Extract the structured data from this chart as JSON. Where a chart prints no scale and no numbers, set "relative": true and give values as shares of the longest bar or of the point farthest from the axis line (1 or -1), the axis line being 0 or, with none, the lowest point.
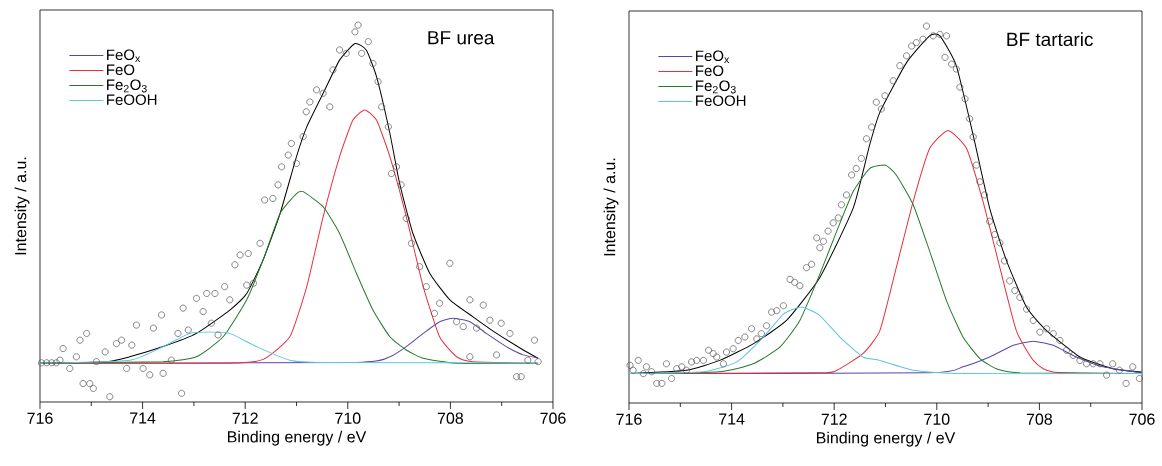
{
  "chart_data": [
    {
      "type": "line",
      "title": "BF urea",
      "xlabel": "Binding energy / eV",
      "ylabel": "Intensity / a.u.",
      "xlim": [
        716,
        706
      ],
      "xticks": [
        716,
        714,
        712,
        710,
        708,
        706
      ],
      "relative": true,
      "legend": "top left",
      "series": [
        {
          "type": "scatter",
          "marker": "circle",
          "color": "#555555",
          "x": [
            715.97,
            715.87,
            715.77,
            715.68,
            715.61,
            715.55,
            715.42,
            715.29,
            715.22,
            715.16,
            715.09,
            715.03,
            714.96,
            714.9,
            714.73,
            714.64,
            714.51,
            714.41,
            714.31,
            714.21,
            714.12,
            713.99,
            713.86,
            713.79,
            713.63,
            713.6,
            713.44,
            713.31,
            713.24,
            713.21,
            713.11,
            712.95,
            712.82,
            712.75,
            712.66,
            712.59,
            712.53,
            712.4,
            712.3,
            712.2,
            712.1,
            711.97,
            711.94,
            711.84,
            711.71,
            711.62,
            711.46,
            711.36,
            711.29,
            711.16,
            711.1,
            711.0,
            710.87,
            710.81,
            710.74,
            710.61,
            710.48,
            710.35,
            710.29,
            710.16,
            710.03,
            709.86,
            709.8,
            709.73,
            709.6,
            709.51,
            709.41,
            709.34,
            709.21,
            709.15,
            709.05,
            708.96,
            708.86,
            708.76,
            708.6,
            708.47,
            708.31,
            708.21,
            708.01,
            707.88,
            707.75,
            707.62,
            707.62,
            707.49,
            707.36,
            707.23,
            707.1,
            707.01,
            706.84,
            706.71,
            706.62,
            706.49,
            706.36,
            706.29
          ],
          "values": [
            0.104,
            0.104,
            0.104,
            0.104,
            0.111,
            0.142,
            0.089,
            0.12,
            0.164,
            0.049,
            0.182,
            0.049,
            0.036,
            0.107,
            0.133,
            0.014,
            0.155,
            0.164,
            0.089,
            0.151,
            0.204,
            0.089,
            0.072,
            0.196,
            0.231,
            0.076,
            0.111,
            0.182,
            0.023,
            0.249,
            0.191,
            0.275,
            0.24,
            0.288,
            0.209,
            0.288,
            0.178,
            0.306,
            0.271,
            0.364,
            0.39,
            0.31,
            0.394,
            0.315,
            0.421,
            0.536,
            0.54,
            0.576,
            0.624,
            0.655,
            0.686,
            0.633,
            0.704,
            0.77,
            0.796,
            0.828,
            0.819,
            0.783,
            0.881,
            0.934,
            0.925,
            0.982,
            1.0,
            0.925,
            0.956,
            0.898,
            0.85,
            0.783,
            0.73,
            0.606,
            0.624,
            0.576,
            0.487,
            0.421,
            0.359,
            0.306,
            0.235,
            0.262,
            0.368,
            0.213,
            0.2,
            0.271,
            0.12,
            0.196,
            0.257,
            0.217,
            0.125,
            0.209,
            0.182,
            0.067,
            0.067,
            0.111,
            0.164,
            0.107
          ]
        },
        {
          "color": "#000000",
          "x": [
            716,
            714.7,
            714.25,
            713.6,
            712.95,
            712.3,
            711.97,
            711.65,
            711.32,
            711.0,
            710.8,
            710.48,
            710.16,
            709.86,
            709.64,
            709.44,
            709.18,
            708.99,
            708.73,
            708.4,
            708.01,
            707.56,
            707.1,
            706.58,
            706.29
          ],
          "values": [
            0.103,
            0.107,
            0.12,
            0.147,
            0.182,
            0.244,
            0.288,
            0.377,
            0.5,
            0.651,
            0.73,
            0.819,
            0.907,
            0.951,
            0.934,
            0.863,
            0.713,
            0.58,
            0.447,
            0.341,
            0.271,
            0.226,
            0.182,
            0.138,
            0.116
          ]
        },
        {
          "name": "FeO$_{x}$",
          "color": "#5b45a8",
          "x": [
            716,
            709.83,
            709.18,
            708.86,
            708.53,
            708.21,
            707.95,
            707.62,
            707.3,
            706.91,
            706.58,
            706.29
          ],
          "values": [
            0.103,
            0.105,
            0.12,
            0.147,
            0.182,
            0.213,
            0.222,
            0.213,
            0.182,
            0.147,
            0.125,
            0.117
          ]
        },
        {
          "name": "FeO",
          "color": "#e8303a",
          "x": [
            716,
            712.3,
            711.65,
            711.13,
            710.8,
            710.48,
            710.16,
            709.9,
            709.67,
            709.44,
            709.18,
            708.86,
            708.53,
            708.21,
            707.88,
            707.56,
            706.29
          ],
          "values": [
            0.103,
            0.103,
            0.113,
            0.173,
            0.306,
            0.492,
            0.651,
            0.748,
            0.775,
            0.748,
            0.651,
            0.492,
            0.306,
            0.173,
            0.12,
            0.107,
            0.103
          ]
        },
        {
          "name": "Fe$_{2}$O$_{3}$",
          "color": "#237a2a",
          "x": [
            716,
            713.6,
            712.95,
            712.43,
            711.97,
            711.65,
            711.32,
            711.0,
            710.87,
            710.48,
            710.16,
            709.83,
            709.51,
            709.18,
            708.86,
            708.53,
            707.88,
            706.29
          ],
          "values": [
            0.103,
            0.107,
            0.12,
            0.173,
            0.271,
            0.377,
            0.5,
            0.553,
            0.558,
            0.518,
            0.447,
            0.341,
            0.244,
            0.173,
            0.138,
            0.116,
            0.103,
            0.103
          ]
        },
        {
          "name": "FeOOH",
          "color": "#5cc6dc",
          "x": [
            716,
            714.25,
            713.6,
            713.08,
            712.69,
            712.3,
            711.78,
            711.13,
            710.48,
            706.29
          ],
          "values": [
            0.103,
            0.111,
            0.147,
            0.182,
            0.186,
            0.182,
            0.147,
            0.111,
            0.105,
            0.103
          ]
        }
      ]
    },
    {
      "type": "line",
      "title": "BF tartaric",
      "xlabel": "Binding energy / eV",
      "ylabel": "Intensity / a.u.",
      "xlim": [
        716,
        706
      ],
      "xticks": [
        716,
        714,
        712,
        710,
        708,
        706
      ],
      "relative": true,
      "legend": "top left",
      "series": [
        {
          "type": "scatter",
          "marker": "circle",
          "color": "#555555",
          "x": [
            715.98,
            715.92,
            715.82,
            715.72,
            715.66,
            715.56,
            715.46,
            715.36,
            715.27,
            715.17,
            715.07,
            714.97,
            714.88,
            714.78,
            714.68,
            714.55,
            714.45,
            714.36,
            714.29,
            714.16,
            714.1,
            713.97,
            713.87,
            713.74,
            713.61,
            713.51,
            713.42,
            713.32,
            713.22,
            713.12,
            712.99,
            712.86,
            712.77,
            712.67,
            712.54,
            712.44,
            712.34,
            712.28,
            712.21,
            712.12,
            712.02,
            711.92,
            711.86,
            711.76,
            711.66,
            711.57,
            711.47,
            711.37,
            711.27,
            711.18,
            711.08,
            711.01,
            710.85,
            710.72,
            710.59,
            710.49,
            710.4,
            710.27,
            710.2,
            710.07,
            709.94,
            709.81,
            709.84,
            709.71,
            709.62,
            709.55,
            709.45,
            709.36,
            709.29,
            709.23,
            709.16,
            709.07,
            708.97,
            708.87,
            708.77,
            708.68,
            708.58,
            708.48,
            708.38,
            708.25,
            708.12,
            707.99,
            707.86,
            707.73,
            707.6,
            707.47,
            707.34,
            707.21,
            707.08,
            706.95,
            706.82,
            706.69,
            706.57,
            706.44,
            706.31,
            706.18,
            706.05
          ],
          "values": [
            0.1,
            0.087,
            0.113,
            0.078,
            0.096,
            0.083,
            0.052,
            0.052,
            0.104,
            0.065,
            0.091,
            0.096,
            0.087,
            0.109,
            0.113,
            0.113,
            0.14,
            0.131,
            0.122,
            0.104,
            0.135,
            0.144,
            0.166,
            0.175,
            0.197,
            0.17,
            0.184,
            0.205,
            0.241,
            0.245,
            0.258,
            0.328,
            0.32,
            0.311,
            0.359,
            0.368,
            0.438,
            0.412,
            0.429,
            0.456,
            0.478,
            0.491,
            0.526,
            0.552,
            0.605,
            0.622,
            0.649,
            0.701,
            0.732,
            0.798,
            0.78,
            0.815,
            0.855,
            0.895,
            0.921,
            0.947,
            0.956,
            0.965,
            1.0,
            0.974,
            0.978,
            0.974,
            0.917,
            0.899,
            0.886,
            0.838,
            0.807,
            0.754,
            0.706,
            0.631,
            0.587,
            0.552,
            0.482,
            0.447,
            0.425,
            0.377,
            0.324,
            0.298,
            0.28,
            0.249,
            0.219,
            0.188,
            0.197,
            0.184,
            0.166,
            0.14,
            0.126,
            0.113,
            0.104,
            0.104,
            0.104,
            0.074,
            0.104,
            0.087,
            0.052,
            0.096,
            0.065
          ]
        },
        {
          "color": "#000000",
          "x": [
            716,
            714.88,
            714.23,
            713.58,
            712.93,
            712.28,
            711.63,
            711.31,
            711.11,
            710.59,
            710.14,
            709.94,
            709.62,
            709.29,
            708.97,
            708.64,
            708.25,
            707.86,
            707.21,
            706.57,
            706.01
          ],
          "values": [
            0.078,
            0.087,
            0.113,
            0.157,
            0.219,
            0.333,
            0.517,
            0.684,
            0.771,
            0.903,
            0.974,
            0.974,
            0.895,
            0.71,
            0.517,
            0.377,
            0.254,
            0.192,
            0.122,
            0.091,
            0.082
          ]
        },
        {
          "name": "FeO$_{x}$",
          "color": "#5b45a8",
          "x": [
            716,
            710.14,
            709.49,
            708.97,
            708.51,
            708.12,
            707.73,
            707.28,
            706.76,
            706
          ],
          "values": [
            0.078,
            0.08,
            0.096,
            0.122,
            0.153,
            0.164,
            0.153,
            0.122,
            0.096,
            0.08
          ]
        },
        {
          "name": "FeO",
          "color": "#e8303a",
          "x": [
            716,
            712.28,
            711.95,
            711.44,
            711.11,
            710.79,
            710.46,
            710.14,
            709.78,
            709.42,
            709.1,
            708.77,
            708.45,
            708.12,
            707.73,
            706
          ],
          "values": [
            0.078,
            0.08,
            0.087,
            0.131,
            0.192,
            0.359,
            0.535,
            0.675,
            0.723,
            0.675,
            0.535,
            0.359,
            0.192,
            0.113,
            0.082,
            0.078
          ]
        },
        {
          "name": "Fe$_{2}$O$_{3}$",
          "color": "#237a2a",
          "x": [
            716,
            714.23,
            713.58,
            713.06,
            712.67,
            712.28,
            711.95,
            711.63,
            711.31,
            711.0,
            710.79,
            710.46,
            710.14,
            709.81,
            709.49,
            709.16,
            708.84,
            708.38,
            706
          ],
          "values": [
            0.078,
            0.083,
            0.104,
            0.148,
            0.219,
            0.342,
            0.456,
            0.561,
            0.622,
            0.631,
            0.605,
            0.526,
            0.403,
            0.271,
            0.175,
            0.118,
            0.091,
            0.08,
            0.078
          ]
        },
        {
          "name": "FeOOH",
          "color": "#5cc6dc",
          "x": [
            716,
            714.55,
            713.9,
            713.38,
            712.99,
            712.64,
            712.28,
            711.89,
            711.44,
            711.11,
            710.46,
            709.49,
            706
          ],
          "values": [
            0.078,
            0.083,
            0.109,
            0.175,
            0.236,
            0.255,
            0.232,
            0.175,
            0.122,
            0.113,
            0.087,
            0.078,
            0.078
          ]
        }
      ]
    }
  ]
}
